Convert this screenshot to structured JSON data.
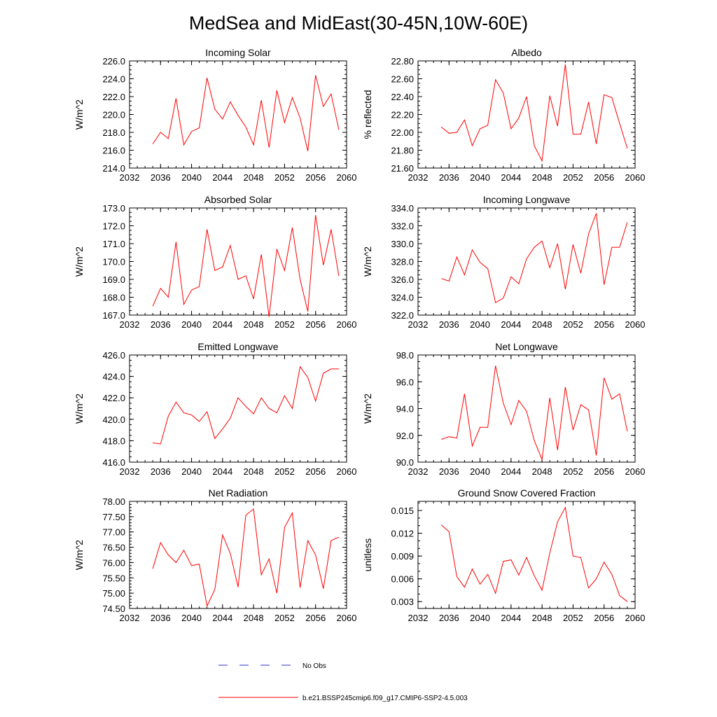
{
  "title": "MedSea and MidEast(30-45N,10W-60E)",
  "legend": {
    "items": [
      {
        "label": "No Obs",
        "color": "#3333cc",
        "dash": true
      },
      {
        "label": "b.e21.BSSP245cmip6.f09_g17.CMIP6-SSP2-4.5.003",
        "color": "#ff0000",
        "dash": false
      }
    ]
  },
  "series_color": "#ff0000",
  "chart_data": [
    {
      "type": "line",
      "title": "Incoming Solar",
      "ylabel": "W/m^2",
      "xlim": [
        2032,
        2060
      ],
      "ylim": [
        214,
        226
      ],
      "xticks": [
        2032,
        2036,
        2040,
        2044,
        2048,
        2052,
        2056,
        2060
      ],
      "yticks": [
        214,
        216,
        218,
        220,
        222,
        224,
        226
      ],
      "yminor": 0.5,
      "ydecimals": 1,
      "x": [
        2035,
        2036,
        2037,
        2038,
        2039,
        2040,
        2041,
        2042,
        2043,
        2044,
        2045,
        2046,
        2047,
        2048,
        2049,
        2050,
        2051,
        2052,
        2053,
        2054,
        2055,
        2056,
        2057,
        2058,
        2059
      ],
      "values": [
        216.7,
        218.0,
        217.3,
        221.8,
        216.6,
        218.1,
        218.5,
        224.1,
        220.6,
        219.5,
        221.4,
        219.9,
        218.6,
        216.6,
        221.6,
        216.3,
        222.7,
        219.1,
        221.9,
        219.6,
        215.9,
        224.4,
        220.9,
        222.3,
        218.3
      ]
    },
    {
      "type": "line",
      "title": "Albedo",
      "ylabel": "% reflected",
      "xlim": [
        2032,
        2060
      ],
      "ylim": [
        21.6,
        22.8
      ],
      "xticks": [
        2032,
        2036,
        2040,
        2044,
        2048,
        2052,
        2056,
        2060
      ],
      "yticks": [
        21.6,
        21.8,
        22.0,
        22.2,
        22.4,
        22.6,
        22.8
      ],
      "yminor": 0.05,
      "ydecimals": 2,
      "x": [
        2035,
        2036,
        2037,
        2038,
        2039,
        2040,
        2041,
        2042,
        2043,
        2044,
        2045,
        2046,
        2047,
        2048,
        2049,
        2050,
        2051,
        2052,
        2053,
        2054,
        2055,
        2056,
        2057,
        2058,
        2059
      ],
      "values": [
        22.06,
        21.99,
        22.0,
        22.14,
        21.85,
        22.04,
        22.08,
        22.59,
        22.44,
        22.04,
        22.16,
        22.4,
        21.85,
        21.68,
        22.41,
        22.07,
        22.76,
        21.98,
        21.98,
        22.34,
        21.87,
        22.42,
        22.39,
        22.1,
        21.82
      ]
    },
    {
      "type": "line",
      "title": "Absorbed Solar",
      "ylabel": "W/m^2",
      "xlim": [
        2032,
        2060
      ],
      "ylim": [
        167,
        173
      ],
      "xticks": [
        2032,
        2036,
        2040,
        2044,
        2048,
        2052,
        2056,
        2060
      ],
      "yticks": [
        167,
        168,
        169,
        170,
        171,
        172,
        173
      ],
      "yminor": 0.25,
      "ydecimals": 1,
      "x": [
        2035,
        2036,
        2037,
        2038,
        2039,
        2040,
        2041,
        2042,
        2043,
        2044,
        2045,
        2046,
        2047,
        2048,
        2049,
        2050,
        2051,
        2052,
        2053,
        2054,
        2055,
        2056,
        2057,
        2058,
        2059
      ],
      "values": [
        167.5,
        168.5,
        168.0,
        171.1,
        167.6,
        168.4,
        168.6,
        171.8,
        169.5,
        169.7,
        170.9,
        169.0,
        169.2,
        167.9,
        170.4,
        166.9,
        170.7,
        169.5,
        171.9,
        169.0,
        167.2,
        172.6,
        169.8,
        171.8,
        169.2
      ]
    },
    {
      "type": "line",
      "title": "Incoming Longwave",
      "ylabel": "W/m^2",
      "xlim": [
        2032,
        2060
      ],
      "ylim": [
        322,
        334
      ],
      "xticks": [
        2032,
        2036,
        2040,
        2044,
        2048,
        2052,
        2056,
        2060
      ],
      "yticks": [
        322,
        324,
        326,
        328,
        330,
        332,
        334
      ],
      "yminor": 0.5,
      "ydecimals": 1,
      "x": [
        2035,
        2036,
        2037,
        2038,
        2039,
        2040,
        2041,
        2042,
        2043,
        2044,
        2045,
        2046,
        2047,
        2048,
        2049,
        2050,
        2051,
        2052,
        2053,
        2054,
        2055,
        2056,
        2057,
        2058,
        2059
      ],
      "values": [
        326.1,
        325.8,
        328.5,
        326.5,
        329.3,
        327.9,
        327.2,
        323.4,
        323.9,
        326.3,
        325.5,
        328.3,
        329.6,
        330.3,
        327.3,
        330.0,
        324.9,
        329.9,
        326.7,
        331.1,
        333.4,
        325.4,
        329.6,
        329.6,
        332.4
      ]
    },
    {
      "type": "line",
      "title": "Emitted Longwave",
      "ylabel": "W/m^2",
      "xlim": [
        2032,
        2060
      ],
      "ylim": [
        416,
        426
      ],
      "xticks": [
        2032,
        2036,
        2040,
        2044,
        2048,
        2052,
        2056,
        2060
      ],
      "yticks": [
        416,
        418,
        420,
        422,
        424,
        426
      ],
      "yminor": 0.5,
      "ydecimals": 1,
      "x": [
        2035,
        2036,
        2037,
        2038,
        2039,
        2040,
        2041,
        2042,
        2043,
        2044,
        2045,
        2046,
        2047,
        2048,
        2049,
        2050,
        2051,
        2052,
        2053,
        2054,
        2055,
        2056,
        2057,
        2058,
        2059
      ],
      "values": [
        417.8,
        417.7,
        420.3,
        421.6,
        420.6,
        420.4,
        419.8,
        420.7,
        418.2,
        419.1,
        420.1,
        422.0,
        421.2,
        420.5,
        422.0,
        421.0,
        420.6,
        422.2,
        421.0,
        424.9,
        423.9,
        421.7,
        424.3,
        424.7,
        424.7
      ]
    },
    {
      "type": "line",
      "title": "Net Longwave",
      "ylabel": "W/m^2",
      "xlim": [
        2032,
        2060
      ],
      "ylim": [
        90,
        98
      ],
      "xticks": [
        2032,
        2036,
        2040,
        2044,
        2048,
        2052,
        2056,
        2060
      ],
      "yticks": [
        90,
        92,
        94,
        96,
        98
      ],
      "yminor": 0.5,
      "ydecimals": 1,
      "x": [
        2035,
        2036,
        2037,
        2038,
        2039,
        2040,
        2041,
        2042,
        2043,
        2044,
        2045,
        2046,
        2047,
        2048,
        2049,
        2050,
        2051,
        2052,
        2053,
        2054,
        2055,
        2056,
        2057,
        2058,
        2059
      ],
      "values": [
        91.7,
        91.9,
        91.8,
        95.1,
        91.2,
        92.6,
        92.6,
        97.2,
        94.4,
        92.8,
        94.6,
        93.8,
        91.6,
        90.2,
        94.8,
        90.9,
        95.6,
        92.4,
        94.3,
        93.9,
        90.5,
        96.3,
        94.7,
        95.1,
        92.3
      ]
    },
    {
      "type": "line",
      "title": "Net Radiation",
      "ylabel": "W/m^2",
      "xlim": [
        2032,
        2060
      ],
      "ylim": [
        74.5,
        78
      ],
      "xticks": [
        2032,
        2036,
        2040,
        2044,
        2048,
        2052,
        2056,
        2060
      ],
      "yticks": [
        74.5,
        75,
        75.5,
        76,
        76.5,
        77,
        77.5,
        78
      ],
      "yminor": 0.1,
      "ydecimals": 2,
      "x": [
        2035,
        2036,
        2037,
        2038,
        2039,
        2040,
        2041,
        2042,
        2043,
        2044,
        2045,
        2046,
        2047,
        2048,
        2049,
        2050,
        2051,
        2052,
        2053,
        2054,
        2055,
        2056,
        2057,
        2058,
        2059
      ],
      "values": [
        75.8,
        76.65,
        76.25,
        76.0,
        76.4,
        75.9,
        75.95,
        74.58,
        75.12,
        76.9,
        76.3,
        75.2,
        77.55,
        77.75,
        75.6,
        76.12,
        75.0,
        77.15,
        77.62,
        75.18,
        76.72,
        76.25,
        75.15,
        76.72,
        76.83
      ]
    },
    {
      "type": "line",
      "title": "Ground Snow Covered Fraction",
      "ylabel": "unitless",
      "xlim": [
        2032,
        2060
      ],
      "ylim": [
        0.0021,
        0.0162
      ],
      "xticks": [
        2032,
        2036,
        2040,
        2044,
        2048,
        2052,
        2056,
        2060
      ],
      "yticks": [
        0.003,
        0.006,
        0.009,
        0.012,
        0.015
      ],
      "yminor": 0.001,
      "ydecimals": 3,
      "x": [
        2035,
        2036,
        2037,
        2038,
        2039,
        2040,
        2041,
        2042,
        2043,
        2044,
        2045,
        2046,
        2047,
        2048,
        2049,
        2050,
        2051,
        2052,
        2053,
        2054,
        2055,
        2056,
        2057,
        2058,
        2059
      ],
      "values": [
        0.0131,
        0.0122,
        0.0063,
        0.0049,
        0.0073,
        0.0053,
        0.0066,
        0.0041,
        0.0083,
        0.0085,
        0.0065,
        0.0088,
        0.0064,
        0.0045,
        0.0094,
        0.0135,
        0.0154,
        0.009,
        0.0088,
        0.0048,
        0.006,
        0.0082,
        0.0066,
        0.0038,
        0.003
      ]
    }
  ]
}
